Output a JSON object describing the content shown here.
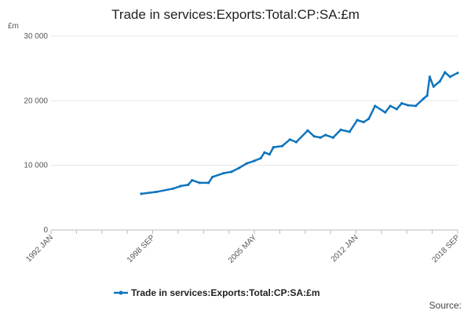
{
  "chart_data": {
    "type": "line",
    "title": "Trade in services:Exports:Total:CP:SA:£m",
    "y_label": "£m",
    "source": "Source:",
    "x": [
      "1997 DEC",
      "1998 DEC",
      "2000 JAN",
      "2000 JUL",
      "2001 JAN",
      "2001 APR",
      "2001 OCT",
      "2002 MAY",
      "2002 AUG",
      "2003 MAY",
      "2003 NOV",
      "2004 MAY",
      "2004 NOV",
      "2005 MAY",
      "2005 OCT",
      "2006 JAN",
      "2006 MAY",
      "2006 AUG",
      "2007 MAR",
      "2007 SEP",
      "2008 FEB",
      "2008 NOV",
      "2009 APR",
      "2009 SEP",
      "2010 JAN",
      "2010 JUL",
      "2011 JAN",
      "2011 AUG",
      "2012 FEB",
      "2012 JUL",
      "2012 NOV",
      "2013 APR",
      "2013 DEC",
      "2014 APR",
      "2014 SEP",
      "2015 JAN",
      "2015 JUN",
      "2015 DEC",
      "2016 JUN",
      "2016 SEP",
      "2016 NOV",
      "2017 FEB",
      "2017 JUL",
      "2017 NOV",
      "2018 MAR",
      "2018 SEP"
    ],
    "series": [
      {
        "name": "Trade in services:Exports:Total:CP:SA:£m",
        "color": "#0f75bc",
        "values": [
          5600,
          5900,
          6400,
          6800,
          7000,
          7700,
          7300,
          7300,
          8200,
          8800,
          9000,
          9600,
          10300,
          10700,
          11100,
          12000,
          11700,
          12800,
          13000,
          14000,
          13600,
          15400,
          14500,
          14300,
          14700,
          14300,
          15500,
          15200,
          17000,
          16700,
          17200,
          19200,
          18200,
          19200,
          18700,
          19600,
          19300,
          19200,
          20300,
          20800,
          23700,
          22200,
          23000,
          24400,
          23700,
          24300
        ]
      }
    ],
    "xlim": [
      "1992 JAN",
      "2018 SEP"
    ],
    "xticks": [
      "1992 JAN",
      "1998 SEP",
      "2005 MAY",
      "2012 JAN",
      "2018 SEP"
    ],
    "ylim": [
      0,
      30000
    ],
    "yticks": [
      {
        "value": 0,
        "label": "0"
      },
      {
        "value": 10000,
        "label": "10 000"
      },
      {
        "value": 20000,
        "label": "20 000"
      },
      {
        "value": 30000,
        "label": "30 000"
      }
    ],
    "grid": true
  }
}
